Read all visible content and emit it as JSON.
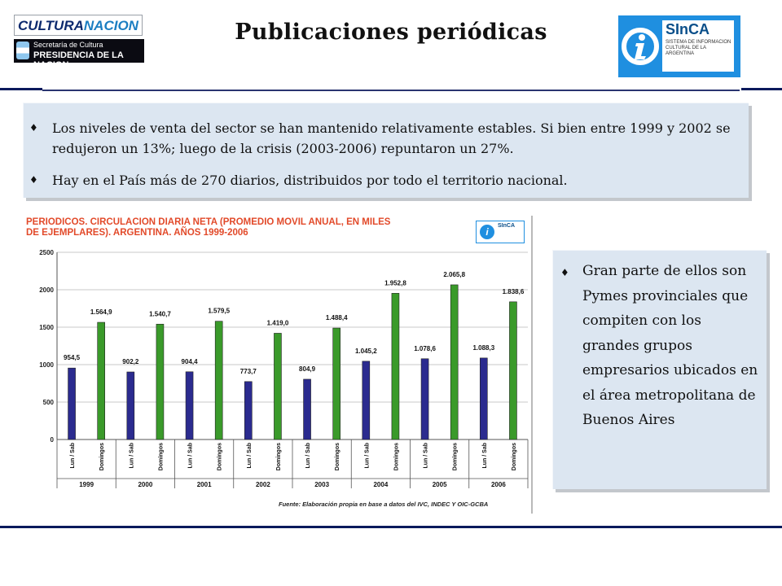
{
  "header": {
    "title": "Publicaciones periódicas",
    "left_logo": {
      "name_a": "CULTURA",
      "name_b": "NACION",
      "line1": "Secretaría de Cultura",
      "line2": "PRESIDENCIA DE LA NACION"
    },
    "right_logo": {
      "name": "SInCA",
      "subtitle": "SISTEMA DE INFORMACION CULTURAL DE LA ARGENTINA"
    }
  },
  "top_box": {
    "bullets": [
      "Los niveles de venta del sector se han mantenido relativamente estables. Si bien entre 1999 y 2002 se redujeron un 13%; luego de la crisis (2003-2006) repuntaron un 27%.",
      "Hay en el País más de 270 diarios, distribuidos por todo el territorio nacional."
    ]
  },
  "side_box": {
    "bullet": "Gran parte de ellos son Pymes provinciales que compiten con los grandes grupos empresarios ubicados en el área metropolitana de Buenos Aires"
  },
  "bullet_symbol": "♦",
  "chart_mini_logo": {
    "mark": "i",
    "name": "SInCA"
  },
  "colors": {
    "lun_sab": "#2b2b8f",
    "domingos": "#3a9a2a",
    "title": "#e24a2a",
    "rule": "#0a1a5c",
    "box_bg": "#dce6f1"
  },
  "chart_data": {
    "type": "bar",
    "title": "PERIODICOS. CIRCULACION DIARIA NETA (PROMEDIO MOVIL ANUAL, EN MILES DE EJEMPLARES). ARGENTINA. AÑOS 1999-2006",
    "source": "Fuente: Elaboración propia en base a datos del IVC, INDEC Y OIC-GCBA",
    "groups": [
      "1999",
      "2000",
      "2001",
      "2002",
      "2003",
      "2004",
      "2005",
      "2006"
    ],
    "series": [
      {
        "name": "Lun / Sab",
        "values": [
          954.5,
          902.2,
          904.4,
          773.7,
          804.9,
          1045.2,
          1078.6,
          1088.3
        ],
        "labels": [
          "954,5",
          "902,2",
          "904,4",
          "773,7",
          "804,9",
          "1.045,2",
          "1.078,6",
          "1.088,3"
        ]
      },
      {
        "name": "Domingos",
        "values": [
          1564.9,
          1540.7,
          1579.5,
          1419.0,
          1488.4,
          1952.8,
          2065.8,
          1838.6
        ],
        "labels": [
          "1.564,9",
          "1.540,7",
          "1.579,5",
          "1.419,0",
          "1.488,4",
          "1.952,8",
          "2.065,8",
          "1.838,6"
        ]
      }
    ],
    "yticks": [
      "0",
      "500",
      "1000",
      "1500",
      "2000",
      "2500"
    ],
    "ylim": [
      0,
      2500
    ],
    "grid": true
  }
}
